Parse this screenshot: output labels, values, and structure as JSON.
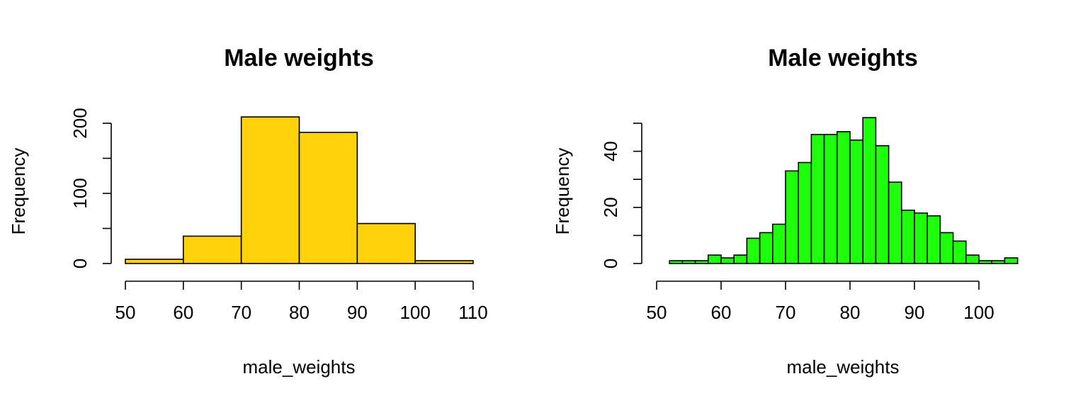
{
  "chart_data": [
    {
      "type": "bar",
      "title": "Male weights",
      "xlabel": "male_weights",
      "ylabel": "Frequency",
      "bar_color": "#FFD20C",
      "bin_edges": [
        50,
        60,
        70,
        80,
        90,
        100,
        110
      ],
      "values": [
        6,
        39,
        209,
        187,
        57,
        4
      ],
      "xlim": [
        50,
        110
      ],
      "ylim": [
        0,
        200
      ],
      "x_ticks": [
        50,
        60,
        70,
        80,
        90,
        100,
        110
      ],
      "x_tick_labels": [
        "50",
        "60",
        "70",
        "80",
        "90",
        "100",
        "110"
      ],
      "y_ticks": [
        0,
        50,
        100,
        150,
        200
      ],
      "y_tick_labels": [
        "0",
        "",
        "100",
        "",
        "200"
      ]
    },
    {
      "type": "bar",
      "title": "Male weights",
      "xlabel": "male_weights",
      "ylabel": "Frequency",
      "bar_color": "#1EFF0C",
      "bin_edges": [
        52,
        54,
        56,
        58,
        60,
        62,
        64,
        66,
        68,
        70,
        72,
        74,
        76,
        78,
        80,
        82,
        84,
        86,
        88,
        90,
        92,
        94,
        96,
        98,
        100,
        102,
        104,
        106
      ],
      "values": [
        1,
        1,
        1,
        3,
        2,
        3,
        9,
        11,
        14,
        33,
        36,
        46,
        46,
        47,
        44,
        52,
        42,
        29,
        19,
        18,
        17,
        11,
        8,
        3,
        1,
        1,
        2
      ],
      "xlim": [
        50,
        100
      ],
      "ylim": [
        0,
        50
      ],
      "x_ticks": [
        50,
        60,
        70,
        80,
        90,
        100
      ],
      "x_tick_labels": [
        "50",
        "60",
        "70",
        "80",
        "90",
        "100"
      ],
      "y_ticks": [
        0,
        10,
        20,
        30,
        40,
        50
      ],
      "y_tick_labels": [
        "0",
        "",
        "20",
        "",
        "40",
        ""
      ]
    }
  ]
}
